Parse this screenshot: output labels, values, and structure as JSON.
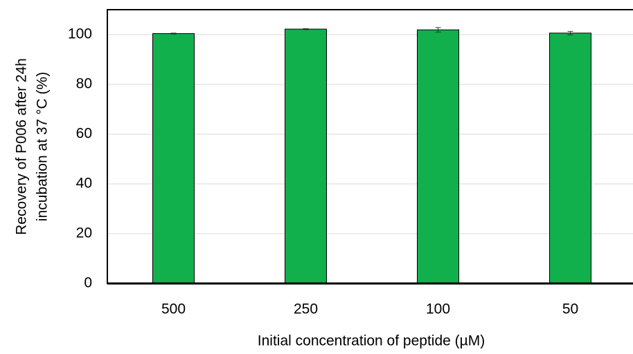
{
  "chart_data": {
    "type": "bar",
    "ylabel": [
      "Recovery of P006 after 24h",
      "incubation at 37 °C (%)"
    ],
    "xlabel": "Initial concentration of peptide (µM)",
    "categories": [
      "500",
      "250",
      "100",
      "50"
    ],
    "values": [
      100.4,
      102.2,
      101.9,
      100.6
    ],
    "errors": [
      0.2,
      0.2,
      0.9,
      0.7
    ],
    "color": "#11b04c",
    "ylim": [
      0,
      110
    ],
    "yticks": [
      0,
      20,
      40,
      60,
      80,
      100
    ],
    "grid": true
  }
}
